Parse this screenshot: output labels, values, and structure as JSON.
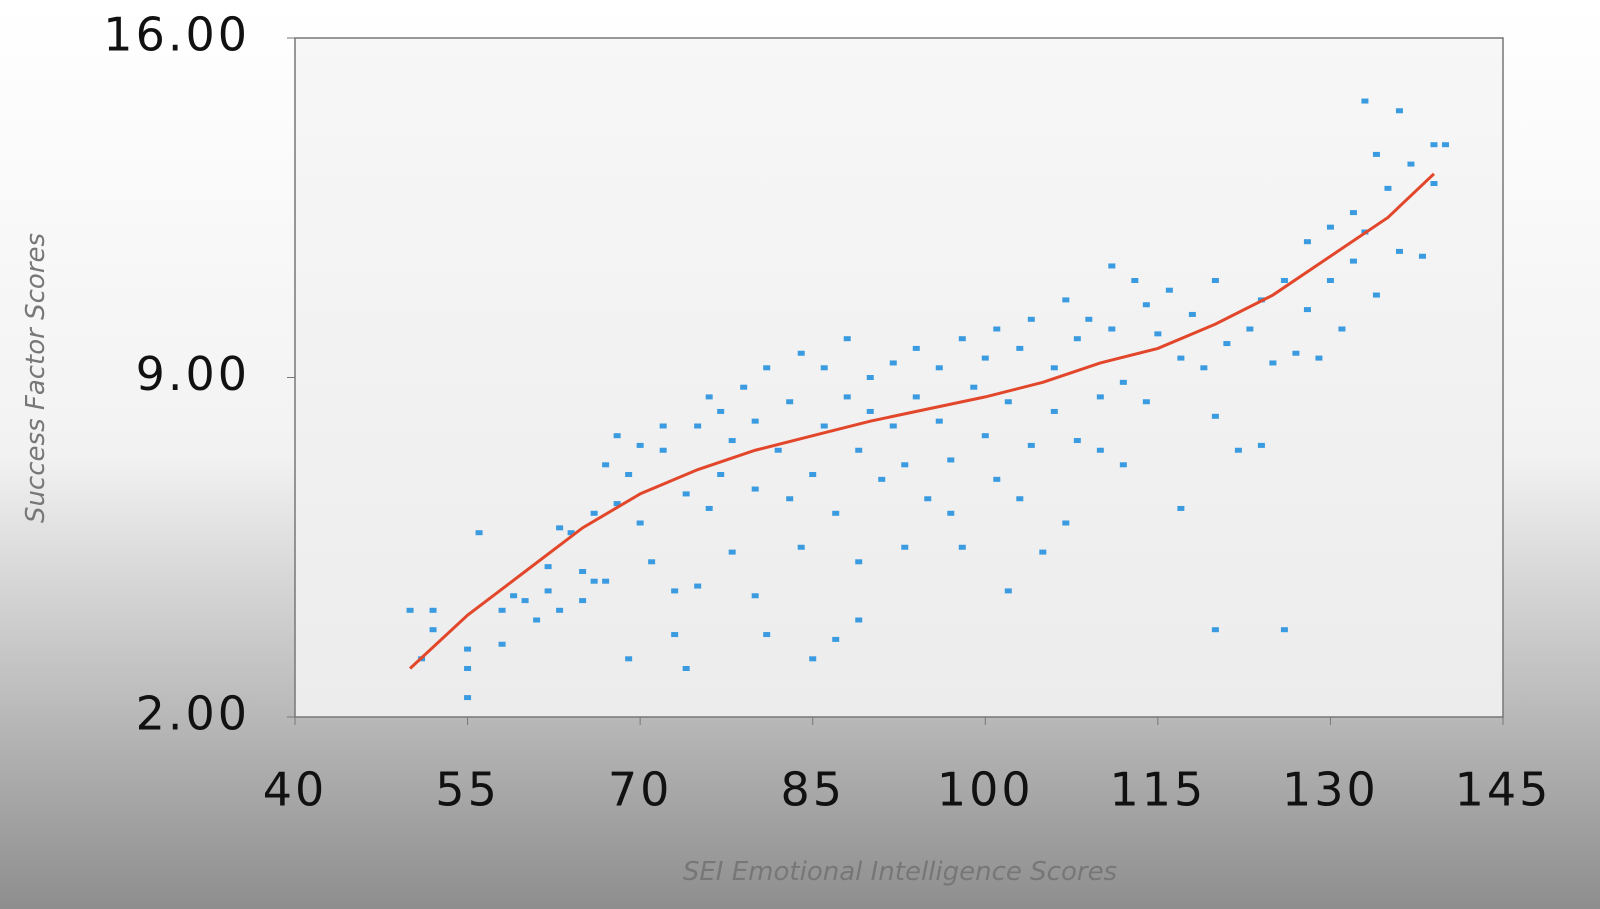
{
  "chart_data": {
    "type": "scatter",
    "xlabel": "SEI Emotional Intelligence Scores",
    "ylabel": "Success Factor Scores",
    "xlim": [
      40,
      145
    ],
    "xticks": [
      40,
      55,
      70,
      85,
      100,
      115,
      130,
      145
    ],
    "ylim": [
      2,
      16
    ],
    "yticks": [
      {
        "value": 2,
        "label": "2.00"
      },
      {
        "value": 9,
        "label": "9.00"
      },
      {
        "value": 16,
        "label": "16.00"
      }
    ],
    "series": [
      {
        "type": "scatter",
        "color": "#3a9be0",
        "x": [
          50,
          52,
          52,
          51,
          55,
          55,
          55,
          56,
          58,
          58,
          59,
          60,
          61,
          62,
          62,
          63,
          63,
          64,
          65,
          65,
          66,
          66,
          67,
          67,
          68,
          68,
          69,
          69,
          70,
          70,
          71,
          72,
          72,
          73,
          73,
          74,
          74,
          75,
          75,
          76,
          76,
          77,
          77,
          78,
          78,
          79,
          80,
          80,
          80,
          81,
          81,
          82,
          83,
          83,
          84,
          84,
          85,
          85,
          86,
          86,
          87,
          87,
          88,
          88,
          89,
          89,
          89,
          90,
          90,
          91,
          92,
          92,
          93,
          93,
          94,
          94,
          95,
          96,
          96,
          97,
          97,
          98,
          98,
          99,
          100,
          100,
          101,
          101,
          102,
          102,
          103,
          103,
          104,
          104,
          105,
          106,
          106,
          107,
          107,
          108,
          108,
          109,
          110,
          110,
          111,
          111,
          112,
          112,
          113,
          114,
          114,
          115,
          116,
          117,
          117,
          118,
          119,
          120,
          120,
          120,
          121,
          122,
          123,
          124,
          124,
          125,
          126,
          126,
          127,
          128,
          128,
          129,
          130,
          130,
          131,
          132,
          132,
          133,
          133,
          134,
          134,
          135,
          136,
          136,
          137,
          138,
          139,
          139,
          140
        ],
        "values": [
          4.2,
          4.2,
          3.8,
          3.2,
          3.0,
          3.4,
          2.4,
          5.8,
          3.5,
          4.2,
          4.5,
          4.4,
          4.0,
          4.6,
          5.1,
          4.2,
          5.9,
          5.8,
          5.0,
          4.4,
          4.8,
          6.2,
          4.8,
          7.2,
          6.4,
          7.8,
          7.0,
          3.2,
          6.0,
          7.6,
          5.2,
          7.5,
          8.0,
          4.6,
          3.7,
          6.6,
          3.0,
          4.7,
          8.0,
          6.3,
          8.6,
          7.0,
          8.3,
          5.4,
          7.7,
          8.8,
          6.7,
          8.1,
          4.5,
          3.7,
          9.2,
          7.5,
          6.5,
          8.5,
          5.5,
          9.5,
          3.2,
          7.0,
          8.0,
          9.2,
          6.2,
          3.6,
          8.6,
          9.8,
          5.2,
          7.5,
          4.0,
          9.0,
          8.3,
          6.9,
          9.3,
          8.0,
          5.5,
          7.2,
          9.6,
          8.6,
          6.5,
          9.2,
          8.1,
          7.3,
          6.2,
          9.8,
          5.5,
          8.8,
          9.4,
          7.8,
          10.0,
          6.9,
          8.5,
          4.6,
          9.6,
          6.5,
          10.2,
          7.6,
          5.4,
          9.2,
          8.3,
          10.6,
          6.0,
          9.8,
          7.7,
          10.2,
          8.6,
          7.5,
          11.3,
          10.0,
          8.9,
          7.2,
          11.0,
          10.5,
          8.5,
          9.9,
          10.8,
          9.4,
          6.3,
          10.3,
          9.2,
          11.0,
          8.2,
          3.8,
          9.7,
          7.5,
          10.0,
          10.6,
          7.6,
          9.3,
          11.0,
          3.8,
          9.5,
          11.8,
          10.4,
          9.4,
          12.1,
          11.0,
          10.0,
          12.4,
          11.4,
          12.0,
          14.7,
          13.6,
          10.7,
          12.9,
          14.5,
          11.6,
          13.4,
          11.5,
          13.8,
          13.0,
          13.8
        ]
      },
      {
        "type": "line",
        "color": "#e2472b",
        "x": [
          50,
          55,
          60,
          65,
          70,
          75,
          80,
          85,
          90,
          95,
          100,
          105,
          110,
          115,
          120,
          125,
          130,
          135,
          139
        ],
        "values": [
          3.0,
          4.1,
          5.0,
          5.9,
          6.6,
          7.1,
          7.5,
          7.8,
          8.1,
          8.35,
          8.6,
          8.9,
          9.3,
          9.6,
          10.1,
          10.7,
          11.5,
          12.3,
          13.2
        ]
      }
    ]
  }
}
